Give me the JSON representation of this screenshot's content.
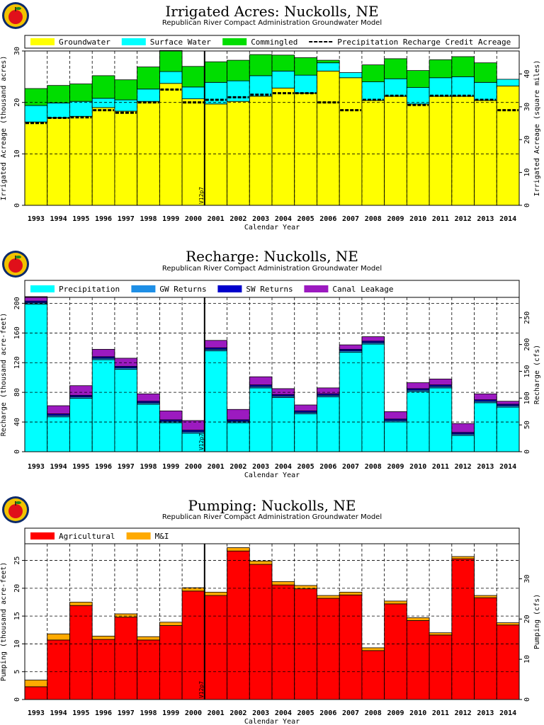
{
  "charts": [
    {
      "title": "Irrigated Acres: Nuckolls, NE",
      "subtitle": "Republican River Compact Administration Groundwater Model"
    },
    {
      "title": "Recharge: Nuckolls, NE",
      "subtitle": "Republican River Compact Administration Groundwater Model"
    },
    {
      "title": "Pumping: Nuckolls, NE",
      "subtitle": "Republican River Compact Administration Groundwater Model"
    }
  ],
  "marker_label": "V12p7",
  "chart_data": [
    {
      "type": "area",
      "stacked": true,
      "xlabel": "Calendar Year",
      "ylabel": "Irrigated Acreage (thousand acres)",
      "y2label": "Irrigated Acreage (square miles)",
      "ylim": [
        0,
        30.0
      ],
      "y2lim": [
        0,
        47
      ],
      "yticks": [
        0,
        10.0,
        20.0,
        30.0
      ],
      "y2ticks": [
        0,
        10.0,
        20.0,
        30.0,
        40.0
      ],
      "grid": true,
      "legend_position": "top",
      "categories": [
        "1993",
        "1994",
        "1995",
        "1996",
        "1997",
        "1998",
        "1999",
        "2000",
        "2001",
        "2002",
        "2003",
        "2004",
        "2005",
        "2006",
        "2007",
        "2008",
        "2009",
        "2010",
        "2011",
        "2012",
        "2013",
        "2014"
      ],
      "series": [
        {
          "name": "Groundwater",
          "color": "#ffff00",
          "values": [
            16.2,
            17.0,
            17.3,
            19.0,
            18.3,
            20.2,
            23.7,
            20.7,
            19.7,
            20.2,
            21.2,
            22.8,
            21.8,
            26.1,
            24.8,
            20.4,
            21.2,
            19.7,
            21.2,
            21.2,
            20.4,
            23.2
          ]
        },
        {
          "name": "Surface Water",
          "color": "#00ffff",
          "values": [
            3.2,
            2.9,
            2.9,
            1.8,
            2.2,
            2.4,
            2.3,
            2.3,
            4.2,
            4.0,
            4.0,
            3.3,
            3.5,
            1.6,
            1.0,
            3.6,
            3.4,
            3.2,
            3.6,
            3.8,
            3.5,
            1.3
          ]
        },
        {
          "name": "Commingled",
          "color": "#00dd00",
          "values": [
            3.3,
            3.4,
            3.4,
            4.4,
            3.9,
            4.3,
            4.1,
            4.0,
            4.0,
            4.0,
            4.1,
            3.1,
            3.4,
            0.5,
            0,
            3.3,
            3.9,
            3.3,
            3.5,
            3.9,
            3.8,
            0
          ]
        }
      ],
      "lines": [
        {
          "name": "Precipitation Recharge Credit Acreage",
          "style": "dashed",
          "values": [
            16.0,
            17.0,
            17.1,
            18.5,
            18.0,
            20.0,
            22.5,
            20.0,
            20.5,
            21.0,
            21.5,
            21.8,
            21.8,
            20.0,
            18.5,
            20.5,
            21.3,
            19.5,
            21.3,
            21.3,
            20.5,
            18.5
          ]
        }
      ]
    },
    {
      "type": "area",
      "stacked": true,
      "xlabel": "Calendar Year",
      "ylabel": "Recharge (thousand acre-feet)",
      "y2label": "Recharge (cfs)",
      "ylim": [
        0,
        208
      ],
      "y2lim": [
        0,
        288
      ],
      "yticks": [
        0,
        40.0,
        80.0,
        120,
        160,
        200
      ],
      "y2ticks": [
        0,
        50.0,
        100,
        150,
        200,
        250
      ],
      "grid": true,
      "legend_position": "top",
      "categories": [
        "1993",
        "1994",
        "1995",
        "1996",
        "1997",
        "1998",
        "1999",
        "2000",
        "2001",
        "2002",
        "2003",
        "2004",
        "2005",
        "2006",
        "2007",
        "2008",
        "2009",
        "2010",
        "2011",
        "2012",
        "2013",
        "2014"
      ],
      "series": [
        {
          "name": "Precipitation",
          "color": "#00ffff",
          "values": [
            199,
            47,
            72,
            124,
            111,
            64,
            39,
            25,
            136,
            39,
            86,
            73,
            51,
            74,
            134,
            145,
            40,
            81,
            86,
            22,
            66,
            60
          ]
        },
        {
          "name": "GW Returns",
          "color": "#1e8fe6",
          "values": [
            2,
            2,
            2,
            2,
            2,
            2,
            2,
            2,
            2,
            2,
            2,
            2,
            2,
            2,
            2,
            2,
            2,
            2,
            2,
            2,
            2,
            2
          ]
        },
        {
          "name": "SW Returns",
          "color": "#0000cc",
          "values": [
            2,
            2,
            2,
            2,
            2,
            2,
            2,
            2,
            2,
            2,
            2,
            2,
            2,
            2,
            2,
            2,
            2,
            2,
            2,
            2,
            2,
            2
          ]
        },
        {
          "name": "Canal Leakage",
          "color": "#9c1ac0",
          "values": [
            6,
            11,
            13,
            10,
            11,
            10,
            12,
            13,
            10,
            14,
            11,
            8,
            8,
            8,
            6,
            6,
            10,
            8,
            8,
            12,
            8,
            4
          ]
        }
      ]
    },
    {
      "type": "area",
      "stacked": true,
      "xlabel": "Calendar Year",
      "ylabel": "Pumping (thousand acre-feet)",
      "y2label": "Pumping (cfs)",
      "ylim": [
        0,
        28
      ],
      "y2lim": [
        0,
        38.7
      ],
      "yticks": [
        0,
        5.0,
        10.0,
        15.0,
        20.0,
        25.0
      ],
      "y2ticks": [
        0,
        10.0,
        20.0,
        30.0
      ],
      "grid": true,
      "legend_position": "top",
      "categories": [
        "1993",
        "1994",
        "1995",
        "1996",
        "1997",
        "1998",
        "1999",
        "2000",
        "2001",
        "2002",
        "2003",
        "2004",
        "2005",
        "2006",
        "2007",
        "2008",
        "2009",
        "2010",
        "2011",
        "2012",
        "2013",
        "2014"
      ],
      "series": [
        {
          "name": "Agricultural",
          "color": "#ff0000",
          "values": [
            2.3,
            10.7,
            16.9,
            10.8,
            14.8,
            10.7,
            13.3,
            19.5,
            18.7,
            26.7,
            24.3,
            20.6,
            19.9,
            18.2,
            18.8,
            8.8,
            17.2,
            14.2,
            11.6,
            25.3,
            18.3,
            13.4
          ]
        },
        {
          "name": "M&I",
          "color": "#ffaa00",
          "values": [
            1.2,
            1.1,
            0.6,
            0.6,
            0.6,
            0.6,
            0.6,
            0.6,
            0.6,
            0.6,
            0.6,
            0.6,
            0.6,
            0.5,
            0.5,
            0.5,
            0.5,
            0.5,
            0.4,
            0.4,
            0.4,
            0.4
          ]
        }
      ]
    }
  ]
}
